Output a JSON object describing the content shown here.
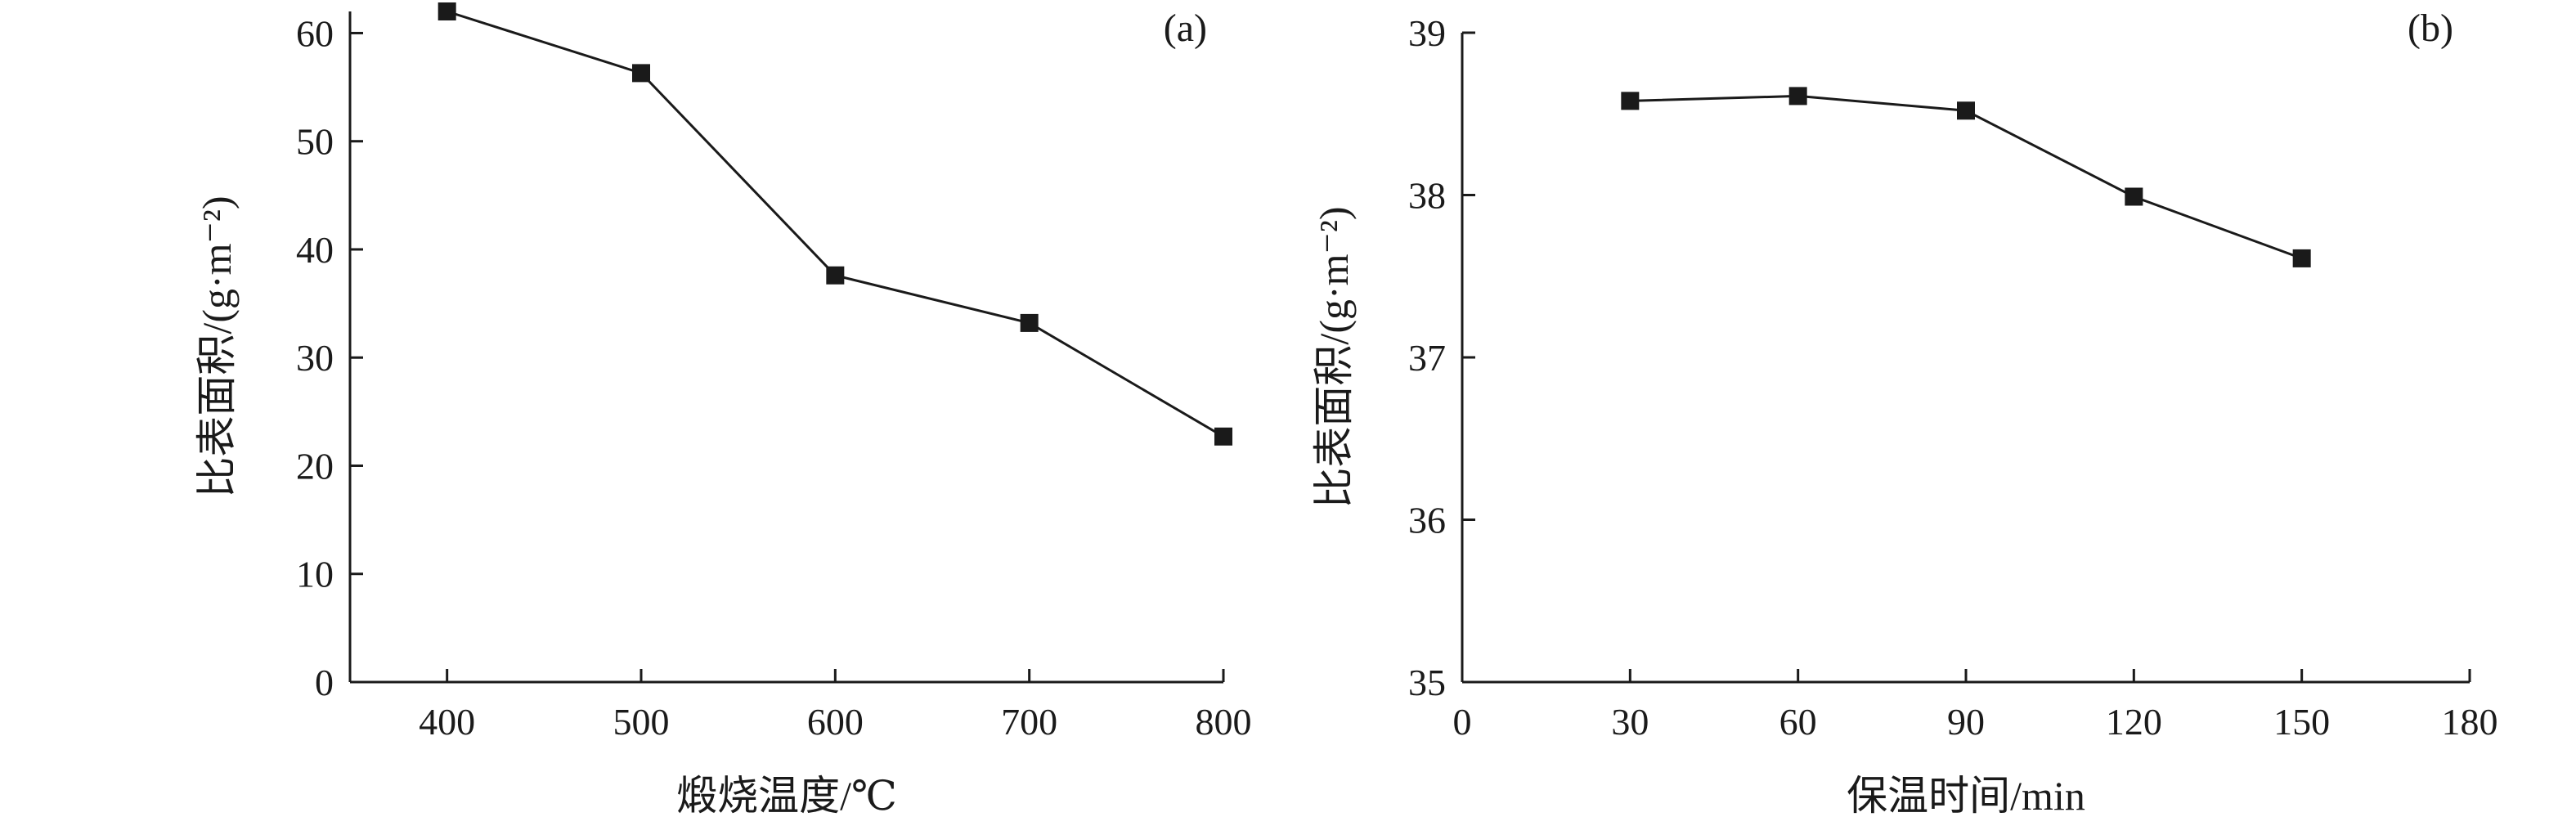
{
  "chart_data": [
    {
      "type": "line",
      "panel": "(a)",
      "xlabel": "煅烧温度/℃",
      "ylabel": "比表面积/(g·m⁻²)",
      "xlim": [
        350,
        800
      ],
      "ylim": [
        0,
        62
      ],
      "xticks": [
        400,
        500,
        600,
        700,
        800
      ],
      "yticks": [
        0,
        10,
        20,
        30,
        40,
        50,
        60
      ],
      "grid": false,
      "series": [
        {
          "x": [
            400,
            500,
            600,
            700,
            800
          ],
          "values": [
            62,
            56.3,
            37.6,
            33.2,
            22.7
          ]
        }
      ]
    },
    {
      "type": "line",
      "panel": "(b)",
      "xlabel": "保温时间/min",
      "ylabel": "比表面积/(g·m⁻²)",
      "xlim": [
        0,
        180
      ],
      "ylim": [
        35,
        39
      ],
      "xticks": [
        0,
        30,
        60,
        90,
        120,
        150,
        180
      ],
      "yticks": [
        35,
        36,
        37,
        38,
        39
      ],
      "grid": false,
      "series": [
        {
          "x": [
            30,
            60,
            90,
            120,
            150
          ],
          "values": [
            38.58,
            38.61,
            38.52,
            37.99,
            37.61
          ]
        }
      ]
    }
  ]
}
